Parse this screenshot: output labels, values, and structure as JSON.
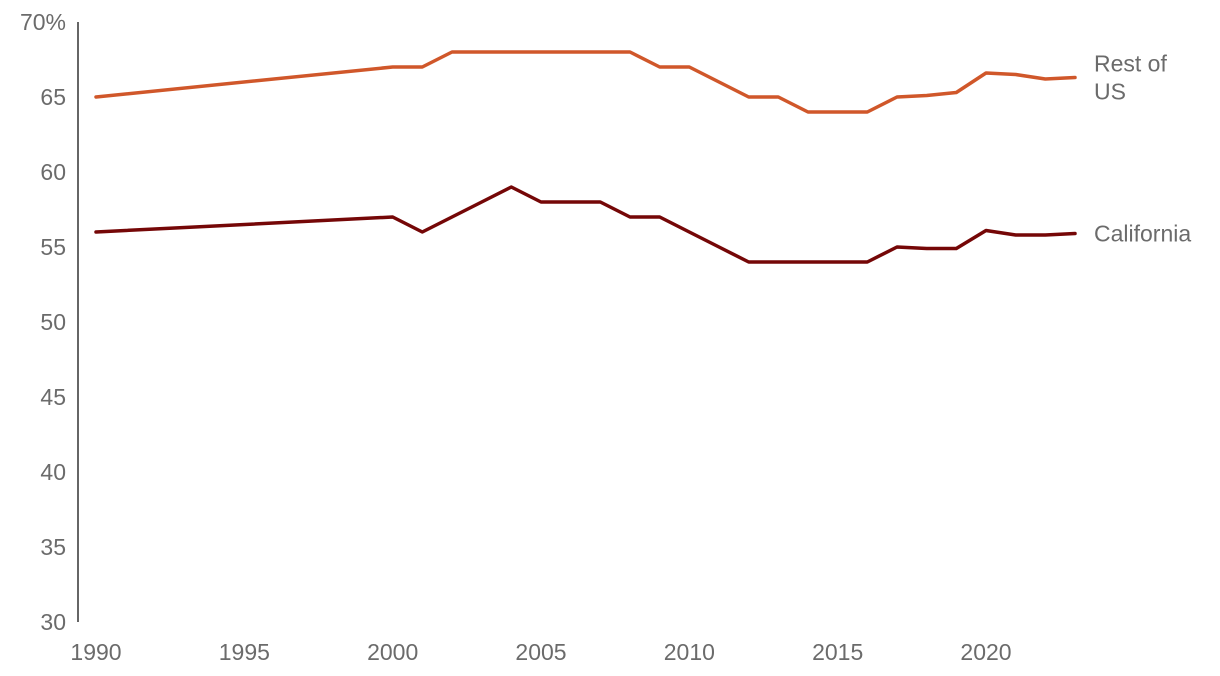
{
  "chart_data": {
    "type": "line",
    "title": "",
    "xlabel": "",
    "ylabel": "",
    "xlim": [
      1990,
      2023
    ],
    "ylim": [
      30,
      70
    ],
    "x_ticks": [
      1990,
      1995,
      2000,
      2005,
      2010,
      2015,
      2020
    ],
    "x_tick_labels": [
      "1990",
      "1995",
      "2000",
      "2005",
      "2010",
      "2015",
      "2020"
    ],
    "y_ticks": [
      30,
      35,
      40,
      45,
      50,
      55,
      60,
      65,
      70
    ],
    "y_tick_labels": [
      "30",
      "35",
      "40",
      "45",
      "50",
      "55",
      "60",
      "65",
      "70%"
    ],
    "grid": false,
    "legend": "direct labels at line ends (right)",
    "series": [
      {
        "name": "Rest of US",
        "label_lines": [
          "Rest of",
          "US"
        ],
        "color": "#d0572a",
        "x": [
          1990,
          2000,
          2001,
          2002,
          2003,
          2004,
          2005,
          2006,
          2007,
          2008,
          2009,
          2010,
          2011,
          2012,
          2013,
          2014,
          2015,
          2016,
          2017,
          2018,
          2019,
          2020,
          2021,
          2022,
          2023
        ],
        "values": [
          65,
          67,
          67,
          68,
          68,
          68,
          68,
          68,
          68,
          68,
          67,
          67,
          66,
          65,
          65,
          64,
          64,
          64,
          65,
          65.1,
          65.3,
          66.6,
          66.5,
          66.2,
          66.3
        ]
      },
      {
        "name": "California",
        "label_lines": [
          "California"
        ],
        "color": "#750707",
        "x": [
          1990,
          2000,
          2001,
          2002,
          2003,
          2004,
          2005,
          2006,
          2007,
          2008,
          2009,
          2010,
          2011,
          2012,
          2013,
          2014,
          2015,
          2016,
          2017,
          2018,
          2019,
          2020,
          2021,
          2022,
          2023
        ],
        "values": [
          56,
          57,
          56,
          57,
          58,
          59,
          58,
          58,
          58,
          57,
          57,
          56,
          55,
          54,
          54,
          54,
          54,
          54,
          55,
          54.9,
          54.9,
          56.1,
          55.8,
          55.8,
          55.9
        ]
      }
    ]
  }
}
